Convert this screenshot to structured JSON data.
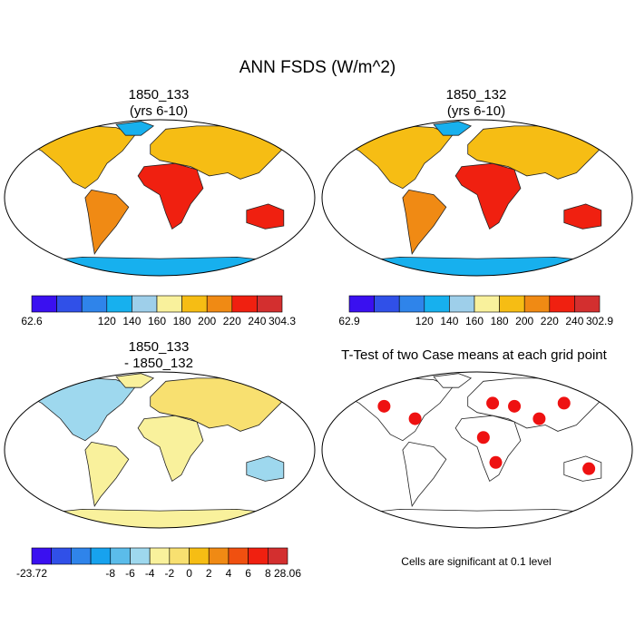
{
  "title": "ANN FSDS (W/m^2)",
  "panels": [
    {
      "id": "case1",
      "title_line1": "1850_133",
      "title_line2": "(yrs 6-10)",
      "colorbar": {
        "colors": [
          "#3a10f0",
          "#3050e8",
          "#2f84ea",
          "#17b0ee",
          "#9ecfea",
          "#f9f19c",
          "#f6bd14",
          "#f08a14",
          "#f02010",
          "#d32f2f"
        ],
        "labels": [
          "62.6",
          "120",
          "140",
          "160",
          "180",
          "200",
          "220",
          "240",
          "304.3"
        ]
      }
    },
    {
      "id": "case2",
      "title_line1": "1850_132",
      "title_line2": "(yrs 6-10)",
      "colorbar": {
        "colors": [
          "#3a10f0",
          "#3050e8",
          "#2f84ea",
          "#17b0ee",
          "#9ecfea",
          "#f9f19c",
          "#f6bd14",
          "#f08a14",
          "#f02010",
          "#d32f2f"
        ],
        "labels": [
          "62.9",
          "120",
          "140",
          "160",
          "180",
          "200",
          "220",
          "240",
          "302.9"
        ]
      }
    },
    {
      "id": "diff",
      "title_line1": "1850_133",
      "title_line2": "- 1850_132",
      "colorbar": {
        "colors": [
          "#3a10f0",
          "#3050e8",
          "#2f84ea",
          "#17a2ee",
          "#5bbcea",
          "#9ed8ee",
          "#f9f19c",
          "#f8e070",
          "#f6bd14",
          "#f08a14",
          "#f05010",
          "#f02010",
          "#d32f2f"
        ],
        "labels": [
          "-23.72",
          "-8",
          "-6",
          "-4",
          "-2",
          "0",
          "2",
          "4",
          "6",
          "8",
          "28.06"
        ]
      }
    },
    {
      "id": "ttest",
      "title_line1": "T-Test of two Case means at each grid point",
      "note": "Cells are significant at 0.1 level",
      "colors": {
        "significant": "#ee1111"
      }
    }
  ]
}
